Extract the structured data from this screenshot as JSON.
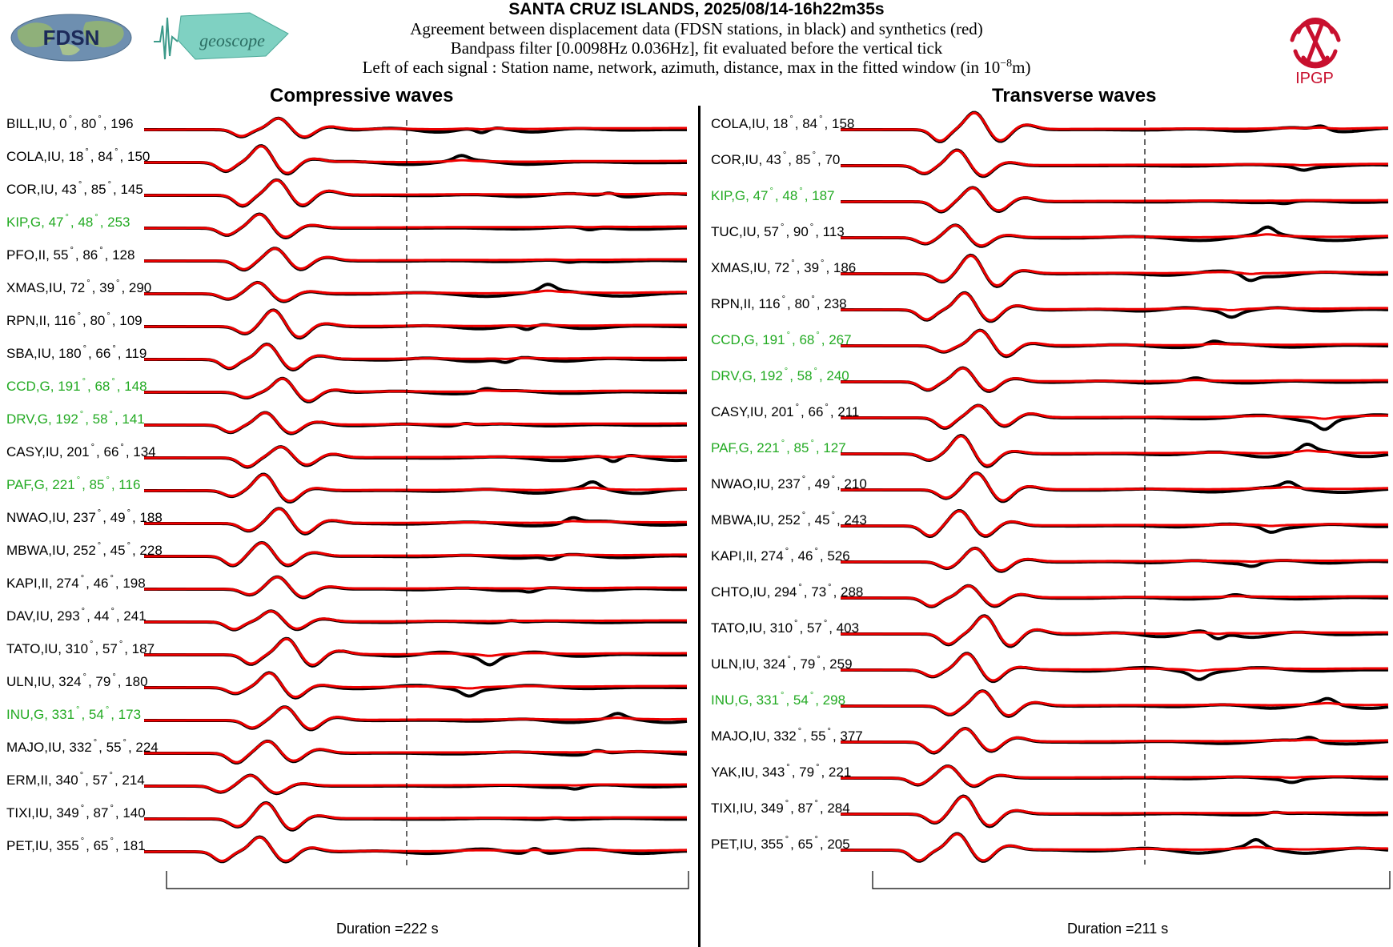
{
  "header": {
    "title": "SANTA CRUZ ISLANDS, 2025/08/14-16h22m35s",
    "line1": "Agreement between displacement data (FDSN stations, in black) and synthetics (red)",
    "line2": "Bandpass filter [0.0098Hz 0.036Hz], fit evaluated before the vertical tick",
    "line3_prefix": "Left of each signal : Station name, network, azimuth, distance, max in the fitted window (in 10",
    "line3_exp": "−8",
    "line3_suffix": "m)",
    "logo_fdsn": "FDSN",
    "logo_geoscope": "geoscope",
    "logo_ipgp": "IPGP"
  },
  "colors": {
    "data": "#000000",
    "synthetic": "#ee0000",
    "green_label": "#22aa22",
    "logo_red": "#c8102e",
    "logo_geo": "#5cb8a8"
  },
  "chart_data": [
    {
      "type": "line",
      "title": "Compressive waves",
      "duration_label": "Duration =222 s",
      "stations": [
        {
          "name": "BILL",
          "net": "IU",
          "az": "0",
          "dist": "80",
          "max": "196",
          "green": false
        },
        {
          "name": "COLA",
          "net": "IU",
          "az": "18",
          "dist": "84",
          "max": "150",
          "green": false
        },
        {
          "name": "COR",
          "net": "IU",
          "az": "43",
          "dist": "85",
          "max": "145",
          "green": false
        },
        {
          "name": "KIP",
          "net": "G",
          "az": "47",
          "dist": "48",
          "max": "253",
          "green": true
        },
        {
          "name": "PFO",
          "net": "II",
          "az": "55",
          "dist": "86",
          "max": "128",
          "green": false
        },
        {
          "name": "XMAS",
          "net": "IU",
          "az": "72",
          "dist": "39",
          "max": "290",
          "green": false
        },
        {
          "name": "RPN",
          "net": "II",
          "az": "116",
          "dist": "80",
          "max": "109",
          "green": false
        },
        {
          "name": "SBA",
          "net": "IU",
          "az": "180",
          "dist": "66",
          "max": "119",
          "green": false
        },
        {
          "name": "CCD",
          "net": "G",
          "az": "191",
          "dist": "68",
          "max": "148",
          "green": true
        },
        {
          "name": "DRV",
          "net": "G",
          "az": "192",
          "dist": "58",
          "max": "141",
          "green": true
        },
        {
          "name": "CASY",
          "net": "IU",
          "az": "201",
          "dist": "66",
          "max": "134",
          "green": false
        },
        {
          "name": "PAF",
          "net": "G",
          "az": "221",
          "dist": "85",
          "max": "116",
          "green": true
        },
        {
          "name": "NWAO",
          "net": "IU",
          "az": "237",
          "dist": "49",
          "max": "188",
          "green": false
        },
        {
          "name": "MBWA",
          "net": "IU",
          "az": "252",
          "dist": "45",
          "max": "228",
          "green": false
        },
        {
          "name": "KAPI",
          "net": "II",
          "az": "274",
          "dist": "46",
          "max": "198",
          "green": false
        },
        {
          "name": "DAV",
          "net": "IU",
          "az": "293",
          "dist": "44",
          "max": "241",
          "green": false
        },
        {
          "name": "TATO",
          "net": "IU",
          "az": "310",
          "dist": "57",
          "max": "187",
          "green": false
        },
        {
          "name": "ULN",
          "net": "IU",
          "az": "324",
          "dist": "79",
          "max": "180",
          "green": false
        },
        {
          "name": "INU",
          "net": "G",
          "az": "331",
          "dist": "54",
          "max": "173",
          "green": true
        },
        {
          "name": "MAJO",
          "net": "IU",
          "az": "332",
          "dist": "55",
          "max": "224",
          "green": false
        },
        {
          "name": "ERM",
          "net": "II",
          "az": "340",
          "dist": "57",
          "max": "214",
          "green": false
        },
        {
          "name": "TIXI",
          "net": "IU",
          "az": "349",
          "dist": "87",
          "max": "140",
          "green": false
        },
        {
          "name": "PET",
          "net": "IU",
          "az": "355",
          "dist": "65",
          "max": "181",
          "green": false
        }
      ]
    },
    {
      "type": "line",
      "title": "Transverse waves",
      "duration_label": "Duration =211 s",
      "stations": [
        {
          "name": "COLA",
          "net": "IU",
          "az": "18",
          "dist": "84",
          "max": "158",
          "green": false
        },
        {
          "name": "COR",
          "net": "IU",
          "az": "43",
          "dist": "85",
          "max": "70",
          "green": false
        },
        {
          "name": "KIP",
          "net": "G",
          "az": "47",
          "dist": "48",
          "max": "187",
          "green": true
        },
        {
          "name": "TUC",
          "net": "IU",
          "az": "57",
          "dist": "90",
          "max": "113",
          "green": false
        },
        {
          "name": "XMAS",
          "net": "IU",
          "az": "72",
          "dist": "39",
          "max": "186",
          "green": false
        },
        {
          "name": "RPN",
          "net": "II",
          "az": "116",
          "dist": "80",
          "max": "238",
          "green": false
        },
        {
          "name": "CCD",
          "net": "G",
          "az": "191",
          "dist": "68",
          "max": "267",
          "green": true
        },
        {
          "name": "DRV",
          "net": "G",
          "az": "192",
          "dist": "58",
          "max": "240",
          "green": true
        },
        {
          "name": "CASY",
          "net": "IU",
          "az": "201",
          "dist": "66",
          "max": "211",
          "green": false
        },
        {
          "name": "PAF",
          "net": "G",
          "az": "221",
          "dist": "85",
          "max": "127",
          "green": true
        },
        {
          "name": "NWAO",
          "net": "IU",
          "az": "237",
          "dist": "49",
          "max": "210",
          "green": false
        },
        {
          "name": "MBWA",
          "net": "IU",
          "az": "252",
          "dist": "45",
          "max": "243",
          "green": false
        },
        {
          "name": "KAPI",
          "net": "II",
          "az": "274",
          "dist": "46",
          "max": "526",
          "green": false
        },
        {
          "name": "CHTO",
          "net": "IU",
          "az": "294",
          "dist": "73",
          "max": "288",
          "green": false
        },
        {
          "name": "TATO",
          "net": "IU",
          "az": "310",
          "dist": "57",
          "max": "403",
          "green": false
        },
        {
          "name": "ULN",
          "net": "IU",
          "az": "324",
          "dist": "79",
          "max": "259",
          "green": false
        },
        {
          "name": "INU",
          "net": "G",
          "az": "331",
          "dist": "54",
          "max": "298",
          "green": true
        },
        {
          "name": "MAJO",
          "net": "IU",
          "az": "332",
          "dist": "55",
          "max": "377",
          "green": false
        },
        {
          "name": "YAK",
          "net": "IU",
          "az": "343",
          "dist": "79",
          "max": "221",
          "green": false
        },
        {
          "name": "TIXI",
          "net": "IU",
          "az": "349",
          "dist": "87",
          "max": "284",
          "green": false
        },
        {
          "name": "PET",
          "net": "IU",
          "az": "355",
          "dist": "65",
          "max": "205",
          "green": false
        }
      ]
    }
  ]
}
